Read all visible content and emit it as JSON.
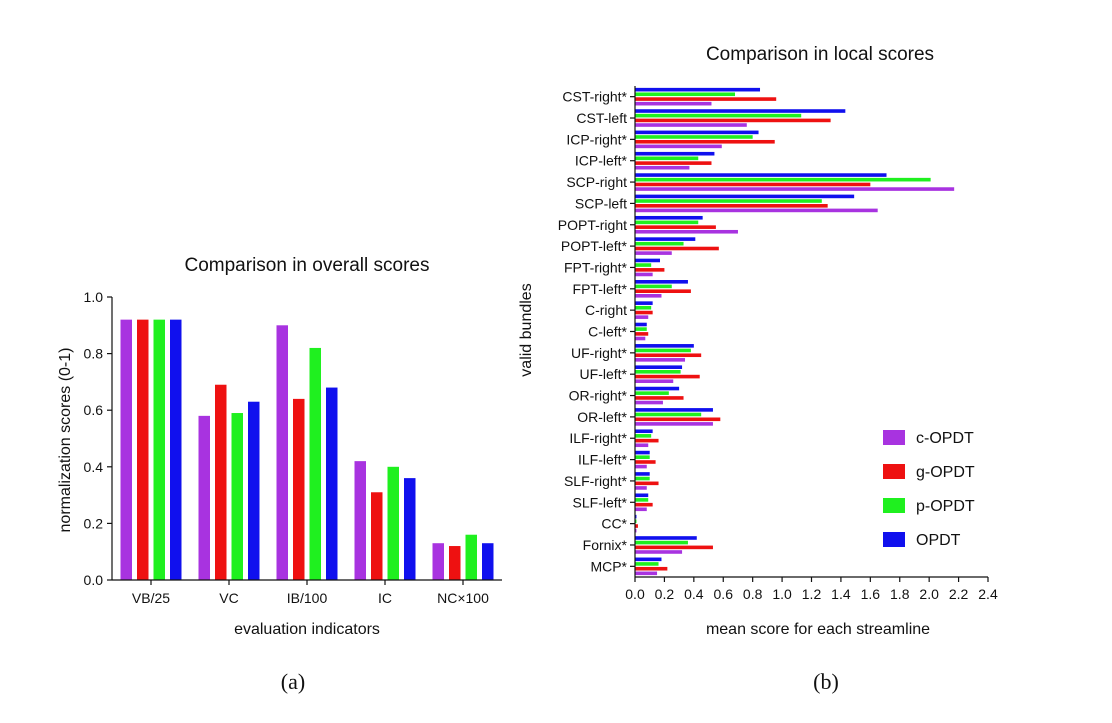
{
  "colors": {
    "c-OPDT": "#a833e0",
    "g-OPDT": "#ee1111",
    "p-OPDT": "#1ff01f",
    "OPDT": "#1010ee",
    "axis": "#111111"
  },
  "panel_labels": {
    "a": "(a)",
    "b": "(b)"
  },
  "chart_data": [
    {
      "type": "bar",
      "orientation": "vertical",
      "title": "Comparison in overall scores",
      "xlabel": "evaluation indicators",
      "ylabel": "normalization scores (0-1)",
      "ylim": [
        0,
        1.0
      ],
      "yticks": [
        0.0,
        0.2,
        0.4,
        0.6,
        0.8,
        1.0
      ],
      "ytick_labels": [
        "0.0",
        "0.2",
        "0.4",
        "0.6",
        "0.8",
        "1.0"
      ],
      "grid": false,
      "categories": [
        "VB/25",
        "VC",
        "IB/100",
        "IC",
        "NC×100"
      ],
      "series": [
        {
          "name": "c-OPDT",
          "color": "#a833e0",
          "values": [
            0.92,
            0.58,
            0.9,
            0.42,
            0.13
          ]
        },
        {
          "name": "g-OPDT",
          "color": "#ee1111",
          "values": [
            0.92,
            0.69,
            0.64,
            0.31,
            0.12
          ]
        },
        {
          "name": "p-OPDT",
          "color": "#1ff01f",
          "values": [
            0.92,
            0.59,
            0.82,
            0.4,
            0.16
          ]
        },
        {
          "name": "OPDT",
          "color": "#1010ee",
          "values": [
            0.92,
            0.63,
            0.68,
            0.36,
            0.13
          ]
        }
      ]
    },
    {
      "type": "bar",
      "orientation": "horizontal",
      "title": "Comparison in local scores",
      "xlabel": "mean score for each streamline",
      "ylabel": "valid bundles",
      "xlim": [
        0,
        2.4
      ],
      "xticks": [
        0,
        0.2,
        0.4,
        0.6,
        0.8,
        1.0,
        1.2,
        1.4,
        1.6,
        1.8,
        2.0,
        2.2,
        2.4
      ],
      "xtick_labels": [
        "0.0",
        "0.2",
        "0.4",
        "0.6",
        "0.8",
        "1.0",
        "1.2",
        "1.4",
        "1.6",
        "1.8",
        "2.0",
        "2.2",
        "2.4"
      ],
      "grid": false,
      "legend_position": "bottom-right",
      "legend": [
        "c-OPDT",
        "g-OPDT",
        "p-OPDT",
        "OPDT"
      ],
      "categories": [
        "CST-right*",
        "CST-left",
        "ICP-right*",
        "ICP-left*",
        "SCP-right",
        "SCP-left",
        "POPT-right",
        "POPT-left*",
        "FPT-right*",
        "FPT-left*",
        "C-right",
        "C-left*",
        "UF-right*",
        "UF-left*",
        "OR-right*",
        "OR-left*",
        "ILF-right*",
        "ILF-left*",
        "SLF-right*",
        "SLF-left*",
        "CC*",
        "Fornix*",
        "MCP*"
      ],
      "series": [
        {
          "name": "OPDT",
          "color": "#1010ee",
          "values": [
            0.85,
            1.43,
            0.84,
            0.54,
            1.71,
            1.49,
            0.46,
            0.41,
            0.17,
            0.36,
            0.12,
            0.08,
            0.4,
            0.32,
            0.3,
            0.53,
            0.12,
            0.1,
            0.1,
            0.09,
            0.01,
            0.42,
            0.18
          ]
        },
        {
          "name": "p-OPDT",
          "color": "#1ff01f",
          "values": [
            0.68,
            1.13,
            0.8,
            0.43,
            2.01,
            1.27,
            0.43,
            0.33,
            0.11,
            0.25,
            0.11,
            0.08,
            0.38,
            0.31,
            0.23,
            0.45,
            0.11,
            0.1,
            0.1,
            0.09,
            0.01,
            0.36,
            0.16
          ]
        },
        {
          "name": "g-OPDT",
          "color": "#ee1111",
          "values": [
            0.96,
            1.33,
            0.95,
            0.52,
            1.6,
            1.31,
            0.55,
            0.57,
            0.2,
            0.38,
            0.12,
            0.09,
            0.45,
            0.44,
            0.33,
            0.58,
            0.16,
            0.14,
            0.16,
            0.12,
            0.02,
            0.53,
            0.22
          ]
        },
        {
          "name": "c-OPDT",
          "color": "#a833e0",
          "values": [
            0.52,
            0.76,
            0.59,
            0.37,
            2.17,
            1.65,
            0.7,
            0.25,
            0.12,
            0.18,
            0.09,
            0.07,
            0.34,
            0.26,
            0.19,
            0.53,
            0.09,
            0.08,
            0.08,
            0.08,
            0.01,
            0.32,
            0.15
          ]
        }
      ]
    }
  ]
}
